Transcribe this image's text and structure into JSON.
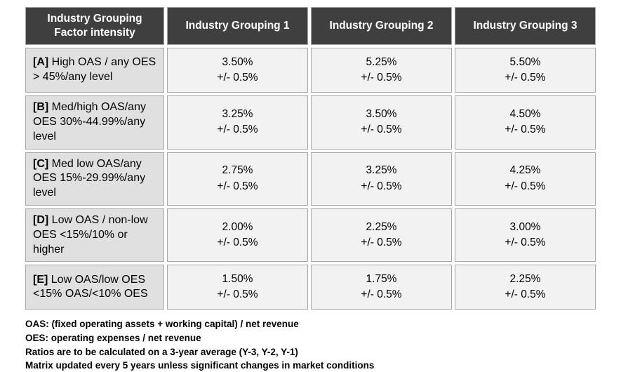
{
  "colors": {
    "page-bg": "#ffffff",
    "header-bg": "#3f3f3f",
    "header-text": "#ffffff",
    "label-bg": "#e0e0e0",
    "value-bg": "#f2f2f2",
    "border": "#a6a6a6",
    "text": "#000000"
  },
  "table": {
    "header": {
      "factor": "Industry Grouping\nFactor intensity",
      "groupings": [
        "Industry Grouping 1",
        "Industry Grouping 2",
        "Industry Grouping 3"
      ]
    },
    "tolerance": "+/- 0.5%",
    "rows": [
      {
        "tag": "[A]",
        "label": "High OAS / any OES > 45%/any level",
        "values": [
          "3.50%",
          "5.25%",
          "5.50%"
        ]
      },
      {
        "tag": "[B]",
        "label": "Med/high OAS/any OES 30%-44.99%/any level",
        "values": [
          "3.25%",
          "3.50%",
          "4.50%"
        ]
      },
      {
        "tag": "[C]",
        "label": "Med low OAS/any OES 15%-29.99%/any level",
        "values": [
          "2.75%",
          "3.25%",
          "4.25%"
        ]
      },
      {
        "tag": "[D]",
        "label": "Low OAS / non-low OES <15%/10% or higher",
        "values": [
          "2.00%",
          "2.25%",
          "3.00%"
        ]
      },
      {
        "tag": "[E]",
        "label": "Low OAS/low OES <15% OAS/<10% OES",
        "values": [
          "1.50%",
          "1.75%",
          "2.25%"
        ]
      }
    ]
  },
  "notes": [
    "OAS: (fixed operating assets + working capital) / net revenue",
    "OES: operating expenses / net revenue",
    "Ratios are to be calculated on a 3-year average (Y-3, Y-2, Y-1)",
    "Matrix updated every 5 years unless significant changes in market conditions"
  ]
}
